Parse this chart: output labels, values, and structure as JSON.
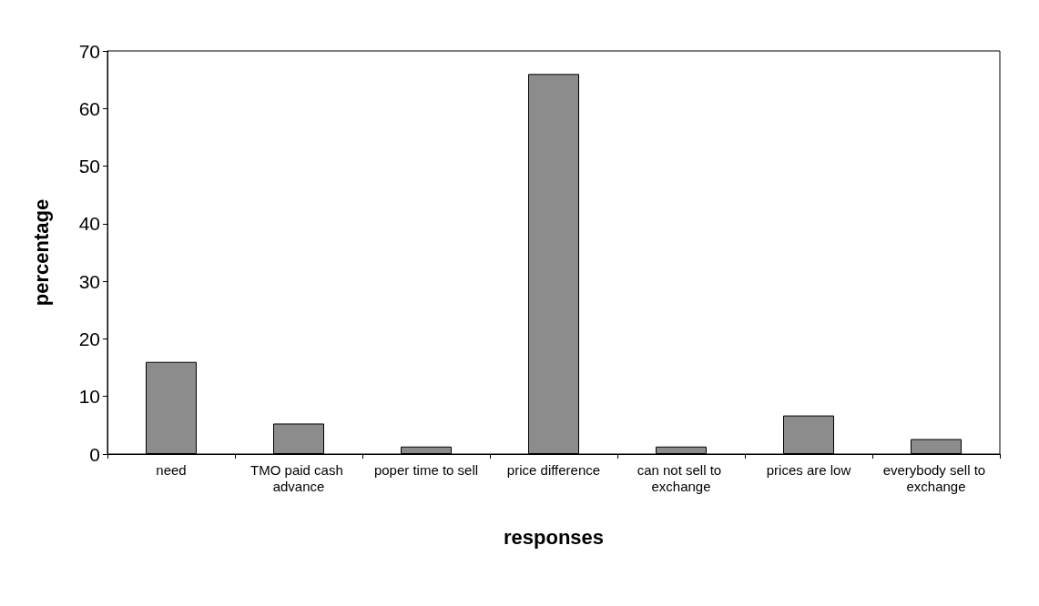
{
  "chart_data": {
    "type": "bar",
    "xlabel": "responses",
    "ylabel": "percentage",
    "categories": [
      "need",
      "TMO paid cash advance",
      "poper time to sell",
      "price difference",
      "can not sell to exchange",
      "prices are low",
      "everybody sell to exchange"
    ],
    "values": [
      16,
      5.3,
      1.3,
      66,
      1.3,
      6.7,
      2.6
    ],
    "color": "#8c8c8c",
    "ylim": [
      0,
      70
    ],
    "yticks": [
      0,
      10,
      20,
      30,
      40,
      50,
      60,
      70
    ],
    "grid": false
  }
}
